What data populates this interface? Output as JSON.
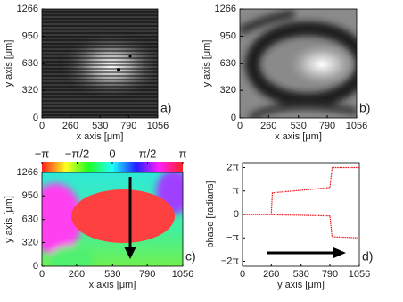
{
  "chart_data": [
    {
      "type": "image",
      "label": "a)",
      "xlabel": "x axis [μm]",
      "ylabel": "y axis [μm]",
      "xlim": [
        0,
        1056
      ],
      "ylim": [
        0,
        1266
      ],
      "xticks": [
        0,
        260,
        530,
        790,
        1056
      ],
      "yticks": [
        0,
        320,
        630,
        950,
        1266
      ]
    },
    {
      "type": "image",
      "label": "b)",
      "xlabel": "x axis [μm]",
      "ylabel": "y axis [μm]",
      "xlim": [
        0,
        1056
      ],
      "ylim": [
        0,
        1266
      ],
      "xticks": [
        0,
        260,
        530,
        790,
        1056
      ],
      "yticks": [
        0,
        320,
        630,
        950,
        1266
      ]
    },
    {
      "type": "image",
      "label": "c)",
      "xlabel": "x axis [μm]",
      "ylabel": "y axis [μm]",
      "xlim": [
        0,
        1056
      ],
      "ylim": [
        0,
        1266
      ],
      "xticks": [
        0,
        260,
        530,
        790,
        1056
      ],
      "yticks": [
        0,
        320,
        630,
        950,
        1266
      ],
      "colorbar": {
        "lim": [
          -3.1416,
          3.1416
        ],
        "ticks": [
          {
            "value": -3.1416,
            "label": "−π"
          },
          {
            "value": -1.5708,
            "label": "−π/2"
          },
          0,
          {
            "value": 1.5708,
            "label": "π/2"
          },
          {
            "value": 3.1416,
            "label": "π"
          }
        ]
      }
    },
    {
      "type": "line",
      "label": "d)",
      "xlabel": "y axis [μm]",
      "ylabel": "phase [radians]",
      "xlim": [
        0,
        1056
      ],
      "ylim": [
        -6.94,
        6.94
      ],
      "xticks": [
        0,
        260,
        530,
        790,
        1056
      ],
      "yticks": [
        {
          "value": -6.2832,
          "label": "−2π"
        },
        {
          "value": -3.1416,
          "label": "−π"
        },
        0,
        {
          "value": 3.1416,
          "label": "π"
        },
        {
          "value": 6.2832,
          "label": "2π"
        }
      ],
      "x": [
        0,
        260,
        270,
        500,
        790,
        810,
        1056
      ],
      "series": [
        {
          "color": "#e8131a",
          "values": [
            0,
            0,
            2.9,
            3.2,
            3.6,
            6.28,
            6.28
          ]
        },
        {
          "color": "#e8131a",
          "values": [
            0,
            0,
            -0.05,
            -0.1,
            -0.2,
            -3.0,
            -3.14
          ]
        }
      ]
    }
  ]
}
